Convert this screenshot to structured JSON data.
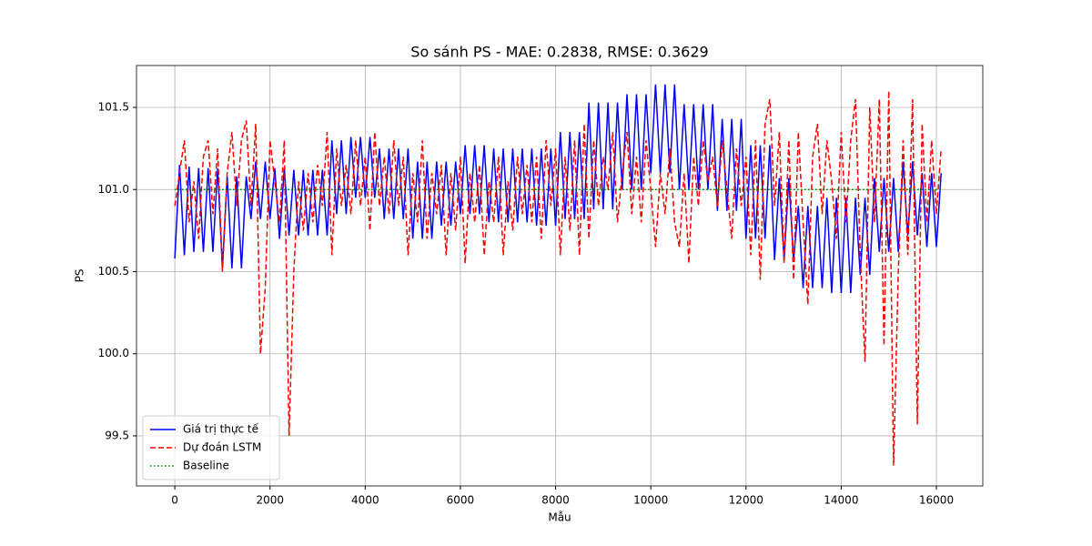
{
  "chart_data": {
    "type": "line",
    "title": "So sánh PS - MAE: 0.2838, RMSE: 0.3629",
    "xlabel": "Mẫu",
    "ylabel": "PS",
    "xlim": [
      -805,
      16975
    ],
    "ylim": [
      99.195,
      101.755
    ],
    "xticks": [
      0,
      2000,
      4000,
      6000,
      8000,
      10000,
      12000,
      14000,
      16000
    ],
    "yticks": [
      99.5,
      {
        "value": 100,
        "label": "100.0"
      },
      100.5,
      {
        "value": 101,
        "label": "101.0"
      },
      101.5
    ],
    "grid": true,
    "legend": "lower left",
    "series": [
      {
        "name": "Giá trị thực tế",
        "color": "#0000ff",
        "linestyle": "solid",
        "x": [
          0,
          100,
          200,
          300,
          400,
          500,
          600,
          700,
          800,
          900,
          1000,
          1100,
          1200,
          1300,
          1400,
          1500,
          1600,
          1700,
          1800,
          1900,
          2000,
          2100,
          2200,
          2300,
          2400,
          2500,
          2600,
          2700,
          2800,
          2900,
          3000,
          3100,
          3200,
          3300,
          3400,
          3500,
          3600,
          3700,
          3800,
          3900,
          4000,
          4100,
          4200,
          4300,
          4400,
          4500,
          4600,
          4700,
          4800,
          4900,
          5000,
          5100,
          5200,
          5300,
          5400,
          5500,
          5600,
          5700,
          5800,
          5900,
          6000,
          6100,
          6200,
          6300,
          6400,
          6500,
          6600,
          6700,
          6800,
          6900,
          7000,
          7100,
          7200,
          7300,
          7400,
          7500,
          7600,
          7700,
          7800,
          7900,
          8000,
          8100,
          8200,
          8300,
          8400,
          8500,
          8600,
          8700,
          8800,
          8900,
          9000,
          9100,
          9200,
          9300,
          9400,
          9500,
          9600,
          9700,
          9800,
          9900,
          10000,
          10100,
          10200,
          10300,
          10400,
          10500,
          10600,
          10700,
          10800,
          10900,
          11000,
          11100,
          11200,
          11300,
          11400,
          11500,
          11600,
          11700,
          11800,
          11900,
          12000,
          12100,
          12200,
          12300,
          12400,
          12500,
          12600,
          12700,
          12800,
          12900,
          13000,
          13100,
          13200,
          13300,
          13400,
          13500,
          13600,
          13700,
          13800,
          13900,
          14000,
          14100,
          14200,
          14300,
          14400,
          14500,
          14600,
          14700,
          14800,
          14900,
          15000,
          15100,
          15200,
          15300,
          15400,
          15500,
          15600,
          15700,
          15800,
          15900,
          16000,
          16100
        ],
        "values": [
          100.58,
          101.15,
          100.6,
          101.14,
          100.62,
          101.13,
          100.62,
          101.13,
          100.62,
          101.13,
          100.52,
          101.08,
          100.52,
          101.08,
          100.52,
          101.08,
          100.82,
          101.17,
          100.82,
          101.17,
          100.82,
          101.13,
          100.7,
          101.13,
          100.72,
          101.12,
          100.72,
          101.12,
          100.72,
          101.12,
          100.72,
          101.12,
          100.72,
          101.3,
          100.85,
          101.3,
          100.85,
          101.32,
          100.95,
          101.32,
          100.95,
          101.32,
          100.95,
          101.25,
          100.82,
          101.25,
          100.82,
          101.25,
          100.82,
          101.25,
          100.7,
          101.17,
          100.7,
          101.17,
          100.7,
          101.17,
          100.78,
          101.17,
          100.78,
          101.17,
          100.85,
          101.27,
          100.85,
          101.27,
          100.85,
          101.27,
          100.8,
          101.25,
          100.8,
          101.25,
          100.8,
          101.25,
          100.8,
          101.25,
          100.8,
          101.25,
          100.78,
          101.25,
          100.78,
          101.25,
          100.78,
          101.35,
          100.82,
          101.35,
          100.82,
          101.35,
          100.82,
          101.53,
          100.88,
          101.53,
          100.88,
          101.53,
          100.88,
          101.53,
          101.0,
          101.58,
          101.0,
          101.58,
          101.0,
          101.58,
          101.1,
          101.64,
          101.1,
          101.64,
          101.1,
          101.64,
          101.0,
          101.52,
          101.0,
          101.52,
          101.0,
          101.52,
          101.0,
          101.52,
          100.87,
          101.43,
          100.87,
          101.43,
          100.87,
          101.43,
          100.7,
          101.27,
          100.7,
          101.27,
          100.7,
          101.27,
          100.57,
          101.07,
          100.57,
          101.07,
          100.57,
          100.9,
          100.4,
          100.9,
          100.4,
          100.9,
          100.4,
          100.95,
          100.37,
          100.95,
          100.37,
          100.95,
          100.37,
          100.95,
          100.48,
          100.95,
          100.48,
          101.07,
          100.62,
          101.07,
          100.62,
          101.07,
          100.62,
          101.17,
          100.72,
          101.17,
          100.72,
          101.1,
          100.65,
          101.1,
          100.65,
          101.1
        ]
      },
      {
        "name": "Dự đoán LSTM",
        "color": "#ff0000",
        "linestyle": "dashed",
        "x": [
          0,
          100,
          200,
          300,
          400,
          500,
          600,
          700,
          800,
          900,
          1000,
          1100,
          1200,
          1300,
          1400,
          1500,
          1600,
          1700,
          1800,
          1900,
          2000,
          2100,
          2200,
          2300,
          2400,
          2500,
          2600,
          2700,
          2800,
          2900,
          3000,
          3100,
          3200,
          3300,
          3400,
          3500,
          3600,
          3700,
          3800,
          3900,
          4000,
          4100,
          4200,
          4300,
          4400,
          4500,
          4600,
          4700,
          4800,
          4900,
          5000,
          5100,
          5200,
          5300,
          5400,
          5500,
          5600,
          5700,
          5800,
          5900,
          6000,
          6100,
          6200,
          6300,
          6400,
          6500,
          6600,
          6700,
          6800,
          6900,
          7000,
          7100,
          7200,
          7300,
          7400,
          7500,
          7600,
          7700,
          7800,
          7900,
          8000,
          8100,
          8200,
          8300,
          8400,
          8500,
          8600,
          8700,
          8800,
          8900,
          9000,
          9100,
          9200,
          9300,
          9400,
          9500,
          9600,
          9700,
          9800,
          9900,
          10000,
          10100,
          10200,
          10300,
          10400,
          10500,
          10600,
          10700,
          10800,
          10900,
          11000,
          11100,
          11200,
          11300,
          11400,
          11500,
          11600,
          11700,
          11800,
          11900,
          12000,
          12100,
          12200,
          12300,
          12400,
          12500,
          12600,
          12700,
          12800,
          12900,
          13000,
          13100,
          13200,
          13300,
          13400,
          13500,
          13600,
          13700,
          13800,
          13900,
          14000,
          14100,
          14200,
          14300,
          14400,
          14500,
          14600,
          14700,
          14800,
          14900,
          15000,
          15100,
          15200,
          15300,
          15400,
          15500,
          15600,
          15700,
          15800,
          15900,
          16000,
          16100
        ],
        "values": [
          100.9,
          101.1,
          101.3,
          100.8,
          101.05,
          100.7,
          101.2,
          101.3,
          100.85,
          101.25,
          100.5,
          101.1,
          101.35,
          100.9,
          101.3,
          101.42,
          100.9,
          101.4,
          100.0,
          100.4,
          101.3,
          101.05,
          100.8,
          101.3,
          99.5,
          100.5,
          101.05,
          100.75,
          101.1,
          100.8,
          101.15,
          100.9,
          101.35,
          100.6,
          101.25,
          100.9,
          101.15,
          100.85,
          101.3,
          100.9,
          101.2,
          100.75,
          101.35,
          100.9,
          101.2,
          100.85,
          101.3,
          100.9,
          101.2,
          100.6,
          101.1,
          100.8,
          101.3,
          100.7,
          101.1,
          100.85,
          101.15,
          100.6,
          101.1,
          100.75,
          101.2,
          100.55,
          101.1,
          100.8,
          101.15,
          100.6,
          101.05,
          100.8,
          101.2,
          100.6,
          101.05,
          100.75,
          101.2,
          100.85,
          101.15,
          100.8,
          101.2,
          100.7,
          101.3,
          100.9,
          101.25,
          100.6,
          101.2,
          100.75,
          101.3,
          100.6,
          101.4,
          100.7,
          101.3,
          100.9,
          101.2,
          101.0,
          101.35,
          100.8,
          101.1,
          101.35,
          100.85,
          101.2,
          100.8,
          101.3,
          101.0,
          100.65,
          101.1,
          100.85,
          101.25,
          100.8,
          100.65,
          101.1,
          100.55,
          101.2,
          100.9,
          101.3,
          101.05,
          101.2,
          100.9,
          101.3,
          101.0,
          100.7,
          101.25,
          100.9,
          101.2,
          100.6,
          101.3,
          100.45,
          101.4,
          101.55,
          100.9,
          101.35,
          100.55,
          101.3,
          100.45,
          101.35,
          100.8,
          100.3,
          101.2,
          101.4,
          100.85,
          101.3,
          101.05,
          100.7,
          101.35,
          100.8,
          101.3,
          101.55,
          100.6,
          99.95,
          101.5,
          100.8,
          101.55,
          100.05,
          101.6,
          99.32,
          100.5,
          101.3,
          100.6,
          101.55,
          99.57,
          101.4,
          100.8,
          101.3,
          100.85,
          101.25
        ]
      },
      {
        "name": "Baseline",
        "color": "#008000",
        "linestyle": "dotted",
        "x": [
          0,
          16100
        ],
        "values": [
          101.0,
          101.0
        ]
      }
    ]
  }
}
